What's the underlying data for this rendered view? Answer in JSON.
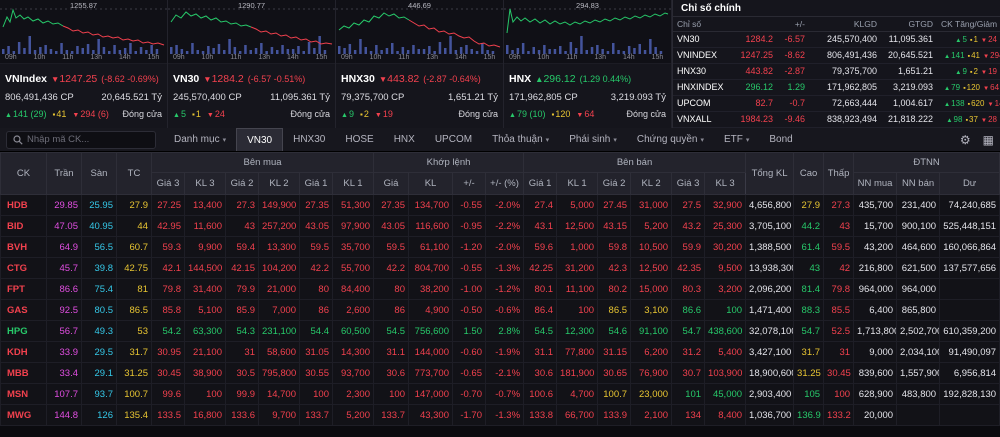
{
  "time_labels": "09h 10h 11h 13h 14h 15h",
  "colors": {
    "up": "#27c96a",
    "down": "#f2414e",
    "reference": "#e8c532",
    "ceiling": "#e14ee1",
    "floor": "#35c8e8",
    "volume_bar": "#44549c"
  },
  "charts": [
    {
      "peak": "1255.87",
      "name": "VNIndex",
      "value": "1247.25",
      "change": "(-8.62 -0.69%)",
      "dir": "down",
      "volume": "806,491,436 CP",
      "turnover": "20,645.521 Tỷ",
      "up": "141 (29)",
      "ref": "41",
      "down": "294 (6)",
      "status": "Đóng cửa"
    },
    {
      "peak": "1290.77",
      "name": "VN30",
      "value": "1284.2",
      "change": "(-6.57 -0.51%)",
      "dir": "down",
      "volume": "245,570,400 CP",
      "turnover": "11,095.361 Tỷ",
      "up": "5",
      "ref": "1",
      "down": "24",
      "status": "Đóng cửa"
    },
    {
      "peak": "446.69",
      "name": "HNX30",
      "value": "443.82",
      "change": "(-2.87 -0.64%)",
      "dir": "down",
      "volume": "79,375,700 CP",
      "turnover": "1,651.21 Tỷ",
      "up": "9",
      "ref": "2",
      "down": "19",
      "status": "Đóng cửa"
    },
    {
      "peak": "294.83",
      "name": "HNX",
      "value": "296.12",
      "change": "(1.29 0.44%)",
      "dir": "up",
      "volume": "171,962,805 CP",
      "turnover": "3,219.093 Tỷ",
      "up": "79 (10)",
      "ref": "120",
      "down": "64",
      "status": "Đóng cửa"
    }
  ],
  "index_panel": {
    "title": "Chỉ số chính",
    "headers": {
      "index": "Chỉ số",
      "change": "+/-",
      "klgd": "KLGD",
      "gtgd": "GTGD",
      "updown": "CK Tăng/Giảm"
    },
    "rows": [
      {
        "name": "VN30",
        "value": "1284.2",
        "change": "-6.57",
        "klgd": "245,570,400",
        "gtgd": "11,095.361",
        "up": "5",
        "ref": "1",
        "down": "24",
        "dir": "down"
      },
      {
        "name": "VNINDEX",
        "value": "1247.25",
        "change": "-8.62",
        "klgd": "806,491,436",
        "gtgd": "20,645.521",
        "up": "141",
        "ref": "41",
        "down": "294",
        "dir": "down"
      },
      {
        "name": "HNX30",
        "value": "443.82",
        "change": "-2.87",
        "klgd": "79,375,700",
        "gtgd": "1,651.21",
        "up": "9",
        "ref": "2",
        "down": "19",
        "dir": "down"
      },
      {
        "name": "HNXINDEX",
        "value": "296.12",
        "change": "1.29",
        "klgd": "171,962,805",
        "gtgd": "3,219.093",
        "up": "79",
        "ref": "120",
        "down": "64",
        "dir": "up"
      },
      {
        "name": "UPCOM",
        "value": "82.7",
        "change": "-0.7",
        "klgd": "72,663,444",
        "gtgd": "1,004.617",
        "up": "138",
        "ref": "620",
        "down": "145",
        "dir": "down"
      },
      {
        "name": "VNXALL",
        "value": "1984.23",
        "change": "-9.46",
        "klgd": "838,923,494",
        "gtgd": "21,818.222",
        "up": "98",
        "ref": "37",
        "down": "28",
        "dir": "down"
      }
    ]
  },
  "nav": {
    "search_placeholder": "Nhập mã CK...",
    "caret": "▾",
    "settings_icon": "⚙",
    "layout_icon": "▦",
    "menu": [
      {
        "label": "Danh mục",
        "dropdown": true
      },
      {
        "label": "VN30",
        "active": true
      },
      {
        "label": "HNX30"
      },
      {
        "label": "HOSE"
      },
      {
        "label": "HNX"
      },
      {
        "label": "UPCOM"
      },
      {
        "label": "Thỏa thuận",
        "dropdown": true
      },
      {
        "label": "Phái sinh",
        "dropdown": true
      },
      {
        "label": "Chứng quyền",
        "dropdown": true
      },
      {
        "label": "ETF",
        "dropdown": true
      },
      {
        "label": "Bond"
      }
    ]
  },
  "table": {
    "groups": {
      "ck": "CK",
      "tran": "Trần",
      "san": "Sàn",
      "tc": "TC",
      "buy": "Bên mua",
      "match": "Khớp lệnh",
      "sell": "Bên bán",
      "tong": "Tổng KL",
      "cao": "Cao",
      "thap": "Thấp",
      "dtnn": "ĐTNN"
    },
    "sub": {
      "g3": "Giá 3",
      "k3": "KL 3",
      "g2": "Giá 2",
      "k2": "KL 2",
      "g1": "Giá 1",
      "k1": "KL 1",
      "gia": "Giá",
      "kl": "KL",
      "chg": "+/-",
      "pct": "+/- (%)",
      "nn_mua": "NN mua",
      "nn_ban": "NN bán",
      "du": "Dư"
    },
    "rows": [
      {
        "cells": [
          "HDB",
          "29.85",
          "25.95",
          "27.9",
          "27.25",
          "13,400",
          "27.3",
          "149,900",
          "27.35",
          "51,300",
          "27.35",
          "134,700",
          "-0.55",
          "-2.0%",
          "27.4",
          "5,000",
          "27.45",
          "31,000",
          "27.5",
          "32,900",
          "4,656,800",
          "27.9",
          "27.3",
          "435,700",
          "231,400",
          "74,240,685"
        ],
        "colors": [
          "r",
          "p",
          "c",
          "y",
          "r",
          "r",
          "r",
          "r",
          "r",
          "r",
          "r",
          "r",
          "r",
          "r",
          "r",
          "r",
          "r",
          "r",
          "r",
          "r",
          "w",
          "y",
          "r",
          "w",
          "w",
          "w"
        ]
      },
      {
        "cells": [
          "BID",
          "47.05",
          "40.95",
          "44",
          "42.95",
          "11,600",
          "43",
          "257,200",
          "43.05",
          "97,900",
          "43.05",
          "116,600",
          "-0.95",
          "-2.2%",
          "43.1",
          "12,500",
          "43.15",
          "5,200",
          "43.2",
          "25,300",
          "3,705,100",
          "44.2",
          "43",
          "15,700",
          "900,100",
          "525,448,151"
        ],
        "colors": [
          "r",
          "p",
          "c",
          "y",
          "r",
          "r",
          "r",
          "r",
          "r",
          "r",
          "r",
          "r",
          "r",
          "r",
          "r",
          "r",
          "r",
          "r",
          "r",
          "r",
          "w",
          "g",
          "r",
          "w",
          "w",
          "w"
        ]
      },
      {
        "cells": [
          "BVH",
          "64.9",
          "56.5",
          "60.7",
          "59.3",
          "9,900",
          "59.4",
          "13,300",
          "59.5",
          "35,700",
          "59.5",
          "61,100",
          "-1.20",
          "-2.0%",
          "59.6",
          "1,000",
          "59.8",
          "10,500",
          "59.9",
          "30,200",
          "1,388,500",
          "61.4",
          "59.5",
          "43,200",
          "464,600",
          "160,066,864"
        ],
        "colors": [
          "r",
          "p",
          "c",
          "y",
          "r",
          "r",
          "r",
          "r",
          "r",
          "r",
          "r",
          "r",
          "r",
          "r",
          "r",
          "r",
          "r",
          "r",
          "r",
          "r",
          "w",
          "g",
          "r",
          "w",
          "w",
          "w"
        ]
      },
      {
        "cells": [
          "CTG",
          "45.7",
          "39.8",
          "42.75",
          "42.1",
          "144,500",
          "42.15",
          "104,200",
          "42.2",
          "55,700",
          "42.2",
          "804,700",
          "-0.55",
          "-1.3%",
          "42.25",
          "31,200",
          "42.3",
          "12,500",
          "42.35",
          "9,500",
          "13,938,300",
          "43",
          "42",
          "216,800",
          "621,500",
          "137,577,656"
        ],
        "colors": [
          "r",
          "p",
          "c",
          "y",
          "r",
          "r",
          "r",
          "r",
          "r",
          "r",
          "r",
          "r",
          "r",
          "r",
          "r",
          "r",
          "r",
          "r",
          "r",
          "r",
          "w",
          "g",
          "r",
          "w",
          "w",
          "w"
        ]
      },
      {
        "cells": [
          "FPT",
          "86.6",
          "75.4",
          "81",
          "79.8",
          "31,400",
          "79.9",
          "21,000",
          "80",
          "84,400",
          "80",
          "38,200",
          "-1.00",
          "-1.2%",
          "80.1",
          "11,100",
          "80.2",
          "15,000",
          "80.3",
          "3,200",
          "2,096,200",
          "81.4",
          "79.8",
          "964,000",
          "964,000",
          ""
        ],
        "colors": [
          "r",
          "p",
          "c",
          "y",
          "r",
          "r",
          "r",
          "r",
          "r",
          "r",
          "r",
          "r",
          "r",
          "r",
          "r",
          "r",
          "r",
          "r",
          "r",
          "r",
          "w",
          "g",
          "r",
          "w",
          "w",
          "w"
        ]
      },
      {
        "cells": [
          "GAS",
          "92.5",
          "80.5",
          "86.5",
          "85.8",
          "5,100",
          "85.9",
          "7,000",
          "86",
          "2,600",
          "86",
          "4,900",
          "-0.50",
          "-0.6%",
          "86.4",
          "100",
          "86.5",
          "3,100",
          "86.6",
          "100",
          "1,471,400",
          "88.3",
          "85.5",
          "6,400",
          "865,800",
          ""
        ],
        "colors": [
          "r",
          "p",
          "c",
          "y",
          "r",
          "r",
          "r",
          "r",
          "r",
          "r",
          "r",
          "r",
          "r",
          "r",
          "r",
          "r",
          "y",
          "y",
          "g",
          "g",
          "w",
          "g",
          "r",
          "w",
          "w",
          "w"
        ]
      },
      {
        "cells": [
          "HPG",
          "56.7",
          "49.3",
          "53",
          "54.2",
          "63,300",
          "54.3",
          "231,100",
          "54.4",
          "60,500",
          "54.5",
          "756,600",
          "1.50",
          "2.8%",
          "54.5",
          "12,300",
          "54.6",
          "91,100",
          "54.7",
          "438,600",
          "32,078,100",
          "54.7",
          "52.5",
          "1,713,800",
          "2,502,700",
          "610,359,200"
        ],
        "colors": [
          "g",
          "p",
          "c",
          "y",
          "g",
          "g",
          "g",
          "g",
          "g",
          "g",
          "g",
          "g",
          "g",
          "g",
          "g",
          "g",
          "g",
          "g",
          "g",
          "g",
          "w",
          "g",
          "r",
          "w",
          "w",
          "w"
        ]
      },
      {
        "cells": [
          "KDH",
          "33.9",
          "29.5",
          "31.7",
          "30.95",
          "21,100",
          "31",
          "58,600",
          "31.05",
          "14,300",
          "31.1",
          "144,000",
          "-0.60",
          "-1.9%",
          "31.1",
          "77,800",
          "31.15",
          "6,200",
          "31.2",
          "5,400",
          "3,427,100",
          "31.7",
          "31",
          "9,000",
          "2,034,100",
          "91,490,097"
        ],
        "colors": [
          "r",
          "p",
          "c",
          "y",
          "r",
          "r",
          "r",
          "r",
          "r",
          "r",
          "r",
          "r",
          "r",
          "r",
          "r",
          "r",
          "r",
          "r",
          "r",
          "r",
          "w",
          "y",
          "r",
          "w",
          "w",
          "w"
        ]
      },
      {
        "cells": [
          "MBB",
          "33.4",
          "29.1",
          "31.25",
          "30.45",
          "38,900",
          "30.5",
          "795,800",
          "30.55",
          "93,700",
          "30.6",
          "773,700",
          "-0.65",
          "-2.1%",
          "30.6",
          "181,900",
          "30.65",
          "76,900",
          "30.7",
          "103,900",
          "18,900,600",
          "31.25",
          "30.45",
          "839,600",
          "1,557,900",
          "6,956,814"
        ],
        "colors": [
          "r",
          "p",
          "c",
          "y",
          "r",
          "r",
          "r",
          "r",
          "r",
          "r",
          "r",
          "r",
          "r",
          "r",
          "r",
          "r",
          "r",
          "r",
          "r",
          "r",
          "w",
          "y",
          "r",
          "w",
          "w",
          "w"
        ]
      },
      {
        "cells": [
          "MSN",
          "107.7",
          "93.7",
          "100.7",
          "99.6",
          "100",
          "99.9",
          "14,700",
          "100",
          "2,300",
          "100",
          "147,000",
          "-0.70",
          "-0.7%",
          "100.6",
          "4,700",
          "100.7",
          "23,000",
          "101",
          "45,000",
          "2,903,400",
          "105",
          "100",
          "628,900",
          "483,800",
          "192,828,130"
        ],
        "colors": [
          "r",
          "p",
          "c",
          "y",
          "r",
          "r",
          "r",
          "r",
          "r",
          "r",
          "r",
          "r",
          "r",
          "r",
          "r",
          "r",
          "y",
          "y",
          "g",
          "g",
          "w",
          "g",
          "r",
          "w",
          "w",
          "w"
        ]
      },
      {
        "cells": [
          "MWG",
          "144.8",
          "126",
          "135.4",
          "133.5",
          "16,800",
          "133.6",
          "9,700",
          "133.7",
          "5,200",
          "133.7",
          "43,300",
          "-1.70",
          "-1.3%",
          "133.8",
          "66,700",
          "133.9",
          "2,100",
          "134",
          "8,400",
          "1,036,700",
          "136.9",
          "133.2",
          "20,000",
          "",
          ""
        ],
        "colors": [
          "r",
          "p",
          "c",
          "y",
          "r",
          "r",
          "r",
          "r",
          "r",
          "r",
          "r",
          "r",
          "r",
          "r",
          "r",
          "r",
          "r",
          "r",
          "r",
          "r",
          "w",
          "g",
          "r",
          "w",
          "w",
          "w"
        ]
      }
    ]
  }
}
